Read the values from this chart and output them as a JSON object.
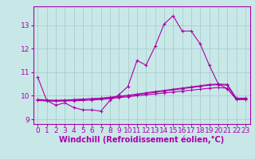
{
  "x_hours": [
    0,
    1,
    2,
    3,
    4,
    5,
    6,
    7,
    8,
    9,
    10,
    11,
    12,
    13,
    14,
    15,
    16,
    17,
    18,
    19,
    20,
    21,
    22,
    23
  ],
  "line1": [
    10.8,
    9.8,
    9.6,
    9.7,
    9.5,
    9.4,
    9.4,
    9.35,
    9.8,
    10.05,
    10.4,
    11.5,
    11.3,
    12.1,
    13.05,
    13.4,
    12.75,
    12.75,
    12.2,
    11.3,
    10.5,
    10.3,
    9.85,
    9.85
  ],
  "line2": [
    9.8,
    9.78,
    9.77,
    9.78,
    9.79,
    9.8,
    9.82,
    9.84,
    9.88,
    9.92,
    9.96,
    10.0,
    10.04,
    10.08,
    10.12,
    10.16,
    10.2,
    10.24,
    10.28,
    10.32,
    10.35,
    10.32,
    9.84,
    9.84
  ],
  "line3": [
    9.82,
    9.8,
    9.79,
    9.8,
    9.82,
    9.84,
    9.86,
    9.88,
    9.92,
    9.96,
    10.0,
    10.05,
    10.1,
    10.15,
    10.2,
    10.25,
    10.3,
    10.35,
    10.4,
    10.45,
    10.47,
    10.45,
    9.87,
    9.87
  ],
  "line4": [
    9.85,
    9.82,
    9.81,
    9.82,
    9.84,
    9.86,
    9.88,
    9.9,
    9.94,
    9.98,
    10.02,
    10.07,
    10.13,
    10.18,
    10.23,
    10.28,
    10.33,
    10.38,
    10.43,
    10.48,
    10.5,
    10.48,
    9.9,
    9.9
  ],
  "line_color": "#aa00aa",
  "bg_color": "#c8e8e8",
  "grid_color": "#a0c8c8",
  "xlabel": "Windchill (Refroidissement éolien,°C)",
  "ylim": [
    8.8,
    13.8
  ],
  "xlim": [
    -0.5,
    23.5
  ],
  "yticks": [
    9,
    10,
    11,
    12,
    13
  ],
  "xticks": [
    0,
    1,
    2,
    3,
    4,
    5,
    6,
    7,
    8,
    9,
    10,
    11,
    12,
    13,
    14,
    15,
    16,
    17,
    18,
    19,
    20,
    21,
    22,
    23
  ],
  "xlabel_fontsize": 7,
  "tick_fontsize": 6.5
}
